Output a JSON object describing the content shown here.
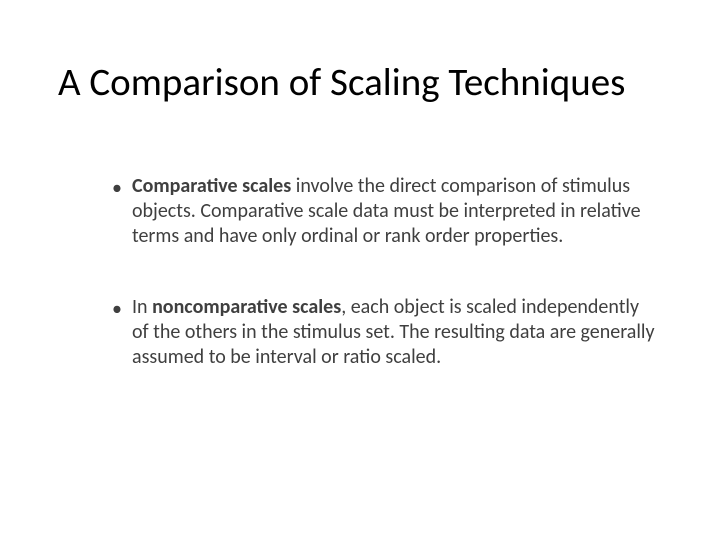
{
  "slide": {
    "title": "A Comparison of Scaling Techniques",
    "title_color": "#000000",
    "title_fontsize": 39,
    "body_color": "#3f3f3f",
    "body_fontsize": 20,
    "background_color": "#ffffff",
    "bullets": [
      {
        "bold_lead": "Comparative scales",
        "rest": " involve the direct comparison of stimulus objects.  Comparative scale data must be interpreted in relative terms and have only ordinal or rank order properties."
      },
      {
        "pre": "In ",
        "bold_lead": "noncomparative scales",
        "rest": ", each object is scaled independently of the others in the stimulus set.  The resulting data are generally assumed to be interval or ratio scaled."
      }
    ],
    "bullet_glyph": "•"
  }
}
